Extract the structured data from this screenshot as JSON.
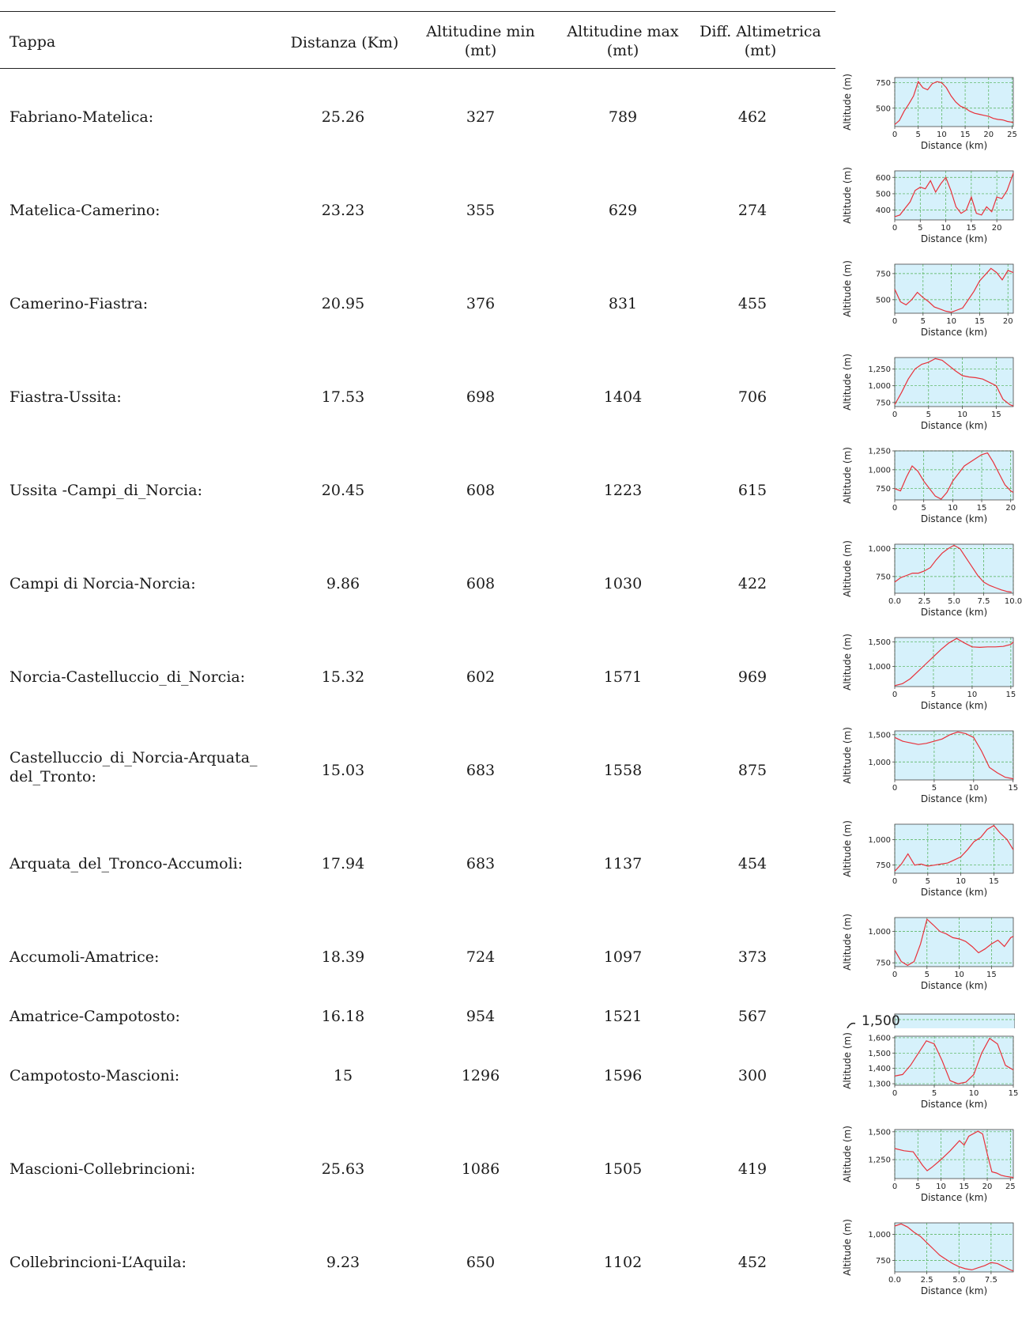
{
  "header": {
    "tappa": "Tappa",
    "distanza": "Distanza (Km)",
    "amin_line1": "Altitudine min",
    "amin_line2": "(mt)",
    "amax_line1": "Altitudine max",
    "amax_line2": "(mt)",
    "diff_line1": "Diff. Altimetrica",
    "diff_line2": "(mt)"
  },
  "rows": [
    {
      "tappa": "Fabriano-Matelica:",
      "distanza": "25.26",
      "amin": "327",
      "amax": "789",
      "diff": "462"
    },
    {
      "tappa": "Matelica-Camerino:",
      "distanza": "23.23",
      "amin": "355",
      "amax": "629",
      "diff": "274"
    },
    {
      "tappa": "Camerino-Fiastra:",
      "distanza": "20.95",
      "amin": "376",
      "amax": "831",
      "diff": "455"
    },
    {
      "tappa": "Fiastra-Ussita:",
      "distanza": "17.53",
      "amin": "698",
      "amax": "1404",
      "diff": "706"
    },
    {
      "tappa": "Ussita -Campi_di_Norcia:",
      "distanza": "20.45",
      "amin": "608",
      "amax": "1223",
      "diff": "615"
    },
    {
      "tappa": "Campi di Norcia-Norcia:",
      "distanza": "9.86",
      "amin": "608",
      "amax": "1030",
      "diff": "422"
    },
    {
      "tappa": "Norcia-Castelluccio_di_Norcia:",
      "distanza": "15.32",
      "amin": "602",
      "amax": "1571",
      "diff": "969"
    },
    {
      "tappa_line1": "Castelluccio_di_Norcia-Arquata_",
      "tappa_line2": "del_Tronto:",
      "distanza": "15.03",
      "amin": "683",
      "amax": "1558",
      "diff": "875"
    },
    {
      "tappa": "Arquata_del_Tronco-Accumoli:",
      "distanza": "17.94",
      "amin": "683",
      "amax": "1137",
      "diff": "454"
    },
    {
      "tappa": "Accumoli-Amatrice:",
      "distanza": "18.39",
      "amin": "724",
      "amax": "1097",
      "diff": "373"
    },
    {
      "tappa": "Amatrice-Campotosto:",
      "distanza": "16.18",
      "amin": "954",
      "amax": "1521",
      "diff": "567"
    },
    {
      "tappa": "Campotosto-Mascioni:",
      "distanza": "15",
      "amin": "1296",
      "amax": "1596",
      "diff": "300"
    },
    {
      "tappa": "Mascioni-Collebrincioni:",
      "distanza": "25.63",
      "amin": "1086",
      "amax": "1505",
      "diff": "419"
    },
    {
      "tappa": "Collebrincioni-L’Aquila:",
      "distanza": "9.23",
      "amin": "650",
      "amax": "1102",
      "diff": "452"
    }
  ],
  "cropped_chart_label": "1,500",
  "chart_data": [
    {
      "type": "line",
      "ylabel": "Altitude (m)",
      "xlabel": "Distance (km)",
      "xlim": [
        0,
        25.26
      ],
      "ylim": [
        320,
        800
      ],
      "yticks": [
        500,
        750
      ],
      "ytick_labels": [
        "500",
        "750"
      ],
      "xticks": [
        0,
        5,
        10,
        15,
        20,
        25
      ],
      "xtick_labels": [
        "0",
        "5",
        "10",
        "15",
        "20",
        "25"
      ],
      "x": [
        0,
        1,
        2,
        3,
        4,
        5,
        6,
        7,
        8,
        9,
        10,
        11,
        12,
        13,
        14,
        15,
        16,
        17,
        18,
        19,
        20,
        21,
        22,
        23,
        24,
        25.26
      ],
      "y": [
        340,
        380,
        470,
        540,
        620,
        760,
        700,
        680,
        740,
        760,
        750,
        700,
        620,
        560,
        520,
        500,
        470,
        450,
        440,
        430,
        420,
        400,
        390,
        385,
        370,
        360
      ]
    },
    {
      "type": "line",
      "ylabel": "Altitude (m)",
      "xlabel": "Distance (km)",
      "xlim": [
        0,
        23.23
      ],
      "ylim": [
        340,
        640
      ],
      "yticks": [
        400,
        500,
        600
      ],
      "ytick_labels": [
        "400",
        "500",
        "600"
      ],
      "xticks": [
        0,
        5,
        10,
        15,
        20
      ],
      "xtick_labels": [
        "0",
        "5",
        "10",
        "15",
        "20"
      ],
      "x": [
        0,
        1,
        2,
        3,
        4,
        5,
        6,
        7,
        8,
        9,
        10,
        11,
        12,
        13,
        14,
        15,
        16,
        17,
        18,
        19,
        20,
        21,
        22,
        23.23
      ],
      "y": [
        360,
        370,
        410,
        450,
        520,
        540,
        530,
        580,
        510,
        560,
        600,
        520,
        420,
        380,
        400,
        480,
        380,
        370,
        420,
        390,
        480,
        470,
        520,
        625
      ]
    },
    {
      "type": "line",
      "ylabel": "Altitude (m)",
      "xlabel": "Distance (km)",
      "xlim": [
        0,
        20.95
      ],
      "ylim": [
        370,
        840
      ],
      "yticks": [
        500,
        750
      ],
      "ytick_labels": [
        "500",
        "750"
      ],
      "xticks": [
        0,
        5,
        10,
        15,
        20
      ],
      "xtick_labels": [
        "0",
        "5",
        "10",
        "15",
        "20"
      ],
      "x": [
        0,
        1,
        2,
        3,
        4,
        5,
        6,
        7,
        8,
        9,
        10,
        11,
        12,
        13,
        14,
        15,
        16,
        17,
        18,
        19,
        20,
        20.95
      ],
      "y": [
        600,
        480,
        450,
        500,
        570,
        520,
        480,
        430,
        410,
        390,
        380,
        400,
        420,
        500,
        580,
        680,
        740,
        800,
        760,
        690,
        780,
        760
      ]
    },
    {
      "type": "line",
      "ylabel": "Altitude (m)",
      "xlabel": "Distance (km)",
      "xlim": [
        0,
        17.53
      ],
      "ylim": [
        690,
        1420
      ],
      "yticks": [
        750,
        1000,
        1250
      ],
      "ytick_labels": [
        "750",
        "1,000",
        "1,250"
      ],
      "xticks": [
        0,
        5,
        10,
        15
      ],
      "xtick_labels": [
        "0",
        "5",
        "10",
        "15"
      ],
      "x": [
        0,
        1,
        2,
        3,
        4,
        5,
        6,
        7,
        8,
        9,
        10,
        11,
        12,
        13,
        14,
        15,
        16,
        17,
        17.53
      ],
      "y": [
        720,
        900,
        1100,
        1250,
        1320,
        1350,
        1404,
        1380,
        1300,
        1220,
        1150,
        1130,
        1120,
        1100,
        1050,
        1000,
        800,
        720,
        700
      ]
    },
    {
      "type": "line",
      "ylabel": "Altitude (m)",
      "xlabel": "Distance (km)",
      "xlim": [
        0,
        20.45
      ],
      "ylim": [
        600,
        1250
      ],
      "yticks": [
        750,
        1000,
        1250
      ],
      "ytick_labels": [
        "750",
        "1,000",
        "1,250"
      ],
      "xticks": [
        0,
        5,
        10,
        15,
        20
      ],
      "xtick_labels": [
        "0",
        "5",
        "10",
        "15",
        "20"
      ],
      "x": [
        0,
        1,
        2,
        3,
        4,
        5,
        6,
        7,
        8,
        9,
        10,
        11,
        12,
        13,
        14,
        15,
        16,
        17,
        18,
        19,
        20,
        20.45
      ],
      "y": [
        750,
        720,
        900,
        1050,
        980,
        850,
        750,
        650,
        610,
        700,
        850,
        950,
        1050,
        1100,
        1150,
        1200,
        1223,
        1100,
        950,
        800,
        720,
        700
      ]
    },
    {
      "type": "line",
      "ylabel": "Altitude (m)",
      "xlabel": "Distance (km)",
      "xlim": [
        0,
        10
      ],
      "ylim": [
        600,
        1040
      ],
      "yticks": [
        750,
        1000
      ],
      "ytick_labels": [
        "750",
        "1,000"
      ],
      "xticks": [
        0,
        2.5,
        5,
        7.5,
        10
      ],
      "xtick_labels": [
        "0.0",
        "2.5",
        "5.0",
        "7.5",
        "10.0"
      ],
      "x": [
        0,
        0.5,
        1,
        1.5,
        2,
        2.5,
        3,
        3.5,
        4,
        4.5,
        5,
        5.5,
        6,
        6.5,
        7,
        7.5,
        8,
        8.5,
        9,
        9.5,
        9.86
      ],
      "y": [
        700,
        740,
        760,
        780,
        780,
        800,
        830,
        900,
        960,
        1000,
        1030,
        1000,
        920,
        840,
        760,
        700,
        670,
        650,
        630,
        615,
        610
      ]
    },
    {
      "type": "line",
      "ylabel": "Altitude (m)",
      "xlabel": "Distance (km)",
      "xlim": [
        0,
        15.32
      ],
      "ylim": [
        590,
        1590
      ],
      "yticks": [
        1000,
        1500
      ],
      "ytick_labels": [
        "1,000",
        "1,500"
      ],
      "xticks": [
        0,
        5,
        10,
        15
      ],
      "xtick_labels": [
        "0",
        "5",
        "10",
        "15"
      ],
      "x": [
        0,
        1,
        2,
        3,
        4,
        5,
        6,
        7,
        8,
        9,
        10,
        11,
        12,
        13,
        14,
        15,
        15.32
      ],
      "y": [
        610,
        650,
        750,
        900,
        1050,
        1200,
        1350,
        1480,
        1571,
        1480,
        1400,
        1390,
        1400,
        1400,
        1410,
        1450,
        1500
      ]
    },
    {
      "type": "line",
      "ylabel": "Altitude (m)",
      "xlabel": "Distance (km)",
      "xlim": [
        0,
        15.03
      ],
      "ylim": [
        670,
        1570
      ],
      "yticks": [
        1000,
        1500
      ],
      "ytick_labels": [
        "1,000",
        "1,500"
      ],
      "xticks": [
        0,
        5,
        10,
        15
      ],
      "xtick_labels": [
        "0",
        "5",
        "10",
        "15"
      ],
      "x": [
        0,
        1,
        2,
        3,
        4,
        5,
        6,
        7,
        8,
        9,
        10,
        11,
        12,
        13,
        14,
        15.03
      ],
      "y": [
        1450,
        1380,
        1350,
        1320,
        1340,
        1380,
        1420,
        1500,
        1550,
        1520,
        1450,
        1200,
        900,
        800,
        720,
        690
      ]
    },
    {
      "type": "line",
      "ylabel": "Altitude (m)",
      "xlabel": "Distance (km)",
      "xlim": [
        0,
        17.94
      ],
      "ylim": [
        670,
        1150
      ],
      "yticks": [
        750,
        1000
      ],
      "ytick_labels": [
        "750",
        "1,000"
      ],
      "xticks": [
        0,
        5,
        10,
        15
      ],
      "xtick_labels": [
        "0",
        "5",
        "10",
        "15"
      ],
      "x": [
        0,
        1,
        2,
        3,
        4,
        5,
        6,
        7,
        8,
        9,
        10,
        11,
        12,
        13,
        14,
        15,
        16,
        17,
        17.94
      ],
      "y": [
        690,
        760,
        860,
        750,
        760,
        740,
        750,
        760,
        770,
        800,
        830,
        900,
        980,
        1020,
        1100,
        1137,
        1060,
        1000,
        900
      ]
    },
    {
      "type": "line",
      "ylabel": "Altitude (m)",
      "xlabel": "Distance (km)",
      "xlim": [
        0,
        18.39
      ],
      "ylim": [
        720,
        1110
      ],
      "yticks": [
        750,
        1000
      ],
      "ytick_labels": [
        "750",
        "1,000"
      ],
      "xticks": [
        0,
        5,
        10,
        15
      ],
      "xtick_labels": [
        "0",
        "5",
        "10",
        "15"
      ],
      "x": [
        0,
        1,
        2,
        3,
        4,
        5,
        6,
        7,
        8,
        9,
        10,
        11,
        12,
        13,
        14,
        15,
        16,
        17,
        18,
        18.39
      ],
      "y": [
        850,
        760,
        730,
        760,
        900,
        1097,
        1050,
        1000,
        980,
        950,
        940,
        920,
        880,
        830,
        860,
        900,
        930,
        880,
        950,
        960
      ]
    },
    {
      "type": "line",
      "ylabel": "Altitude (m)",
      "xlabel": "Distance (km)",
      "xlim": [
        0,
        15
      ],
      "ylim": [
        1290,
        1610
      ],
      "yticks": [
        1300,
        1400,
        1500,
        1600
      ],
      "ytick_labels": [
        "1,300",
        "1,400",
        "1,500",
        "1,600"
      ],
      "xticks": [
        0,
        5,
        10,
        15
      ],
      "xtick_labels": [
        "0",
        "5",
        "10",
        "15"
      ],
      "x": [
        0,
        1,
        2,
        3,
        4,
        5,
        6,
        7,
        8,
        9,
        10,
        11,
        12,
        13,
        14,
        15
      ],
      "y": [
        1350,
        1360,
        1420,
        1500,
        1580,
        1560,
        1450,
        1320,
        1300,
        1310,
        1360,
        1500,
        1596,
        1560,
        1420,
        1390
      ]
    },
    {
      "type": "line",
      "ylabel": "Altitude (m)",
      "xlabel": "Distance (km)",
      "xlim": [
        0,
        25.63
      ],
      "ylim": [
        1080,
        1520
      ],
      "yticks": [
        1250,
        1500
      ],
      "ytick_labels": [
        "1,250",
        "1,500"
      ],
      "xticks": [
        0,
        5,
        10,
        15,
        20,
        25
      ],
      "xtick_labels": [
        "0",
        "5",
        "10",
        "15",
        "20",
        "25"
      ],
      "x": [
        0,
        2,
        4,
        6,
        7,
        8,
        10,
        12,
        14,
        15,
        16,
        18,
        19,
        20,
        21,
        22,
        23,
        24,
        25.63
      ],
      "y": [
        1350,
        1330,
        1320,
        1200,
        1150,
        1180,
        1250,
        1330,
        1420,
        1380,
        1460,
        1505,
        1480,
        1300,
        1140,
        1130,
        1110,
        1100,
        1090
      ]
    },
    {
      "type": "line",
      "ylabel": "Altitude (m)",
      "xlabel": "Distance (km)",
      "xlim": [
        0,
        9.23
      ],
      "ylim": [
        640,
        1110
      ],
      "yticks": [
        750,
        1000
      ],
      "ytick_labels": [
        "750",
        "1,000"
      ],
      "xticks": [
        0,
        2.5,
        5,
        7.5
      ],
      "xtick_labels": [
        "0.0",
        "2.5",
        "5.0",
        "7.5"
      ],
      "x": [
        0,
        0.5,
        1,
        1.5,
        2,
        2.5,
        3,
        3.5,
        4,
        4.5,
        5,
        5.5,
        6,
        6.5,
        7,
        7.5,
        8,
        8.5,
        9,
        9.23
      ],
      "y": [
        1080,
        1100,
        1070,
        1020,
        980,
        920,
        860,
        800,
        760,
        720,
        690,
        670,
        660,
        680,
        700,
        730,
        720,
        690,
        660,
        650
      ]
    }
  ]
}
